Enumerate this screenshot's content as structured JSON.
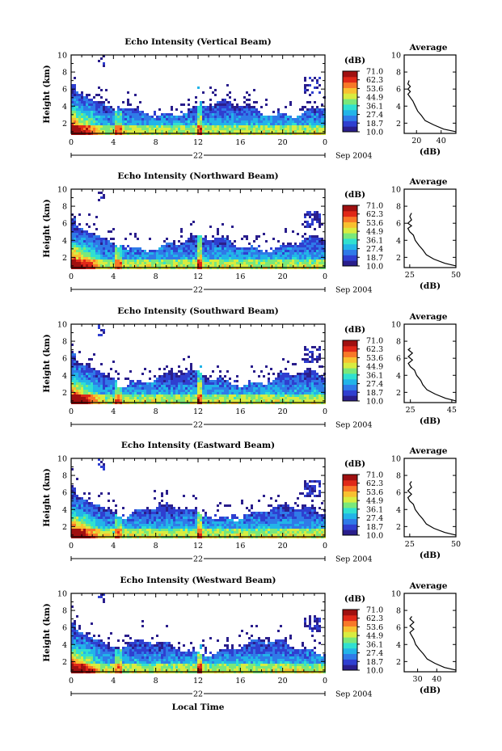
{
  "colorscale": {
    "unit_label": "(dB)",
    "ticks": [
      "71.0",
      "62.3",
      "53.6",
      "44.9",
      "36.1",
      "27.4",
      "18.7",
      "10.0"
    ],
    "colors": [
      "#2a1e8c",
      "#2f3fd0",
      "#2f7ae8",
      "#22b4e8",
      "#30e0d0",
      "#7ae87a",
      "#d8ec40",
      "#f8c030",
      "#f87828",
      "#e02818",
      "#a01010"
    ]
  },
  "shared": {
    "ylabel": "Height (km)",
    "yticks": [
      2,
      4,
      6,
      8,
      10
    ],
    "ylim": [
      0.8,
      10.0
    ],
    "xticks": [
      "0",
      "4",
      "8",
      "12",
      "16",
      "20",
      "0"
    ],
    "xlim": [
      0,
      24
    ],
    "date_day": "22",
    "date_month_year": "Sep 2004",
    "avg_title": "Average",
    "avg_xlabel": "(dB)",
    "bottom_xlabel": "Local Time"
  },
  "chart_data": [
    {
      "type": "heatmap",
      "title": "Echo Intensity (Vertical Beam)",
      "ylabel": "Height (km)",
      "x_axis": "Local Time",
      "zlim": [
        10.0,
        71.0
      ],
      "profile": {
        "type": "line",
        "title": "Average",
        "xlabel": "(dB)",
        "xticks": [
          "20",
          "40"
        ],
        "xlim": [
          10,
          52
        ],
        "points": [
          [
            52,
            1.0
          ],
          [
            42,
            1.3
          ],
          [
            34,
            1.8
          ],
          [
            27,
            2.3
          ],
          [
            24,
            2.9
          ],
          [
            21,
            3.4
          ],
          [
            19,
            4.0
          ],
          [
            17,
            4.6
          ],
          [
            15,
            5.0
          ],
          [
            13,
            5.4
          ],
          [
            15,
            5.7
          ],
          [
            13,
            6.0
          ],
          [
            15,
            6.3
          ],
          [
            13,
            6.6
          ],
          [
            14,
            7.0
          ]
        ]
      }
    },
    {
      "type": "heatmap",
      "title": "Echo Intensity (Northward Beam)",
      "ylabel": "Height (km)",
      "x_axis": "Local Time",
      "zlim": [
        10.0,
        71.0
      ],
      "profile": {
        "type": "line",
        "title": "Average",
        "xlabel": "(dB)",
        "xticks": [
          "25",
          "50"
        ],
        "xlim": [
          22,
          50
        ],
        "points": [
          [
            50,
            1.0
          ],
          [
            44,
            1.3
          ],
          [
            38,
            1.8
          ],
          [
            34,
            2.3
          ],
          [
            32,
            2.9
          ],
          [
            30,
            3.4
          ],
          [
            28,
            4.0
          ],
          [
            27,
            4.6
          ],
          [
            25,
            5.0
          ],
          [
            24,
            5.4
          ],
          [
            26,
            5.7
          ],
          [
            24,
            6.0
          ],
          [
            26,
            6.4
          ],
          [
            25,
            6.8
          ],
          [
            26,
            7.2
          ]
        ]
      }
    },
    {
      "type": "heatmap",
      "title": "Echo Intensity (Southward Beam)",
      "ylabel": "Height (km)",
      "x_axis": "Local Time",
      "zlim": [
        10.0,
        71.0
      ],
      "profile": {
        "type": "line",
        "title": "Average",
        "xlabel": "(dB)",
        "xticks": [
          "25",
          "45"
        ],
        "xlim": [
          22,
          47
        ],
        "points": [
          [
            47,
            1.0
          ],
          [
            42,
            1.3
          ],
          [
            37,
            1.8
          ],
          [
            33,
            2.3
          ],
          [
            31,
            2.9
          ],
          [
            30,
            3.4
          ],
          [
            28,
            4.0
          ],
          [
            27,
            4.6
          ],
          [
            25,
            5.0
          ],
          [
            24,
            5.4
          ],
          [
            26,
            5.8
          ],
          [
            24,
            6.2
          ],
          [
            26,
            6.6
          ],
          [
            24,
            7.0
          ],
          [
            25,
            7.2
          ]
        ]
      }
    },
    {
      "type": "heatmap",
      "title": "Echo Intensity (Eastward Beam)",
      "ylabel": "Height (km)",
      "x_axis": "Local Time",
      "zlim": [
        10.0,
        71.0
      ],
      "profile": {
        "type": "line",
        "title": "Average",
        "xlabel": "(dB)",
        "xticks": [
          "25",
          "50"
        ],
        "xlim": [
          22,
          50
        ],
        "points": [
          [
            50,
            1.0
          ],
          [
            44,
            1.3
          ],
          [
            38,
            1.8
          ],
          [
            34,
            2.3
          ],
          [
            32,
            2.9
          ],
          [
            30,
            3.4
          ],
          [
            28,
            4.0
          ],
          [
            27,
            4.6
          ],
          [
            25,
            5.0
          ],
          [
            24,
            5.4
          ],
          [
            26,
            5.8
          ],
          [
            24,
            6.2
          ],
          [
            26,
            6.6
          ],
          [
            25,
            7.0
          ],
          [
            26,
            7.3
          ]
        ]
      }
    },
    {
      "type": "heatmap",
      "title": "Echo Intensity (Westward Beam)",
      "ylabel": "Height (km)",
      "x_axis": "Local Time",
      "zlim": [
        10.0,
        71.0
      ],
      "profile": {
        "type": "line",
        "title": "Average",
        "xlabel": "(dB)",
        "xticks": [
          "30",
          "40"
        ],
        "xlim": [
          23,
          50
        ],
        "points": [
          [
            50,
            1.0
          ],
          [
            44,
            1.3
          ],
          [
            39,
            1.8
          ],
          [
            35,
            2.3
          ],
          [
            33,
            2.9
          ],
          [
            31,
            3.4
          ],
          [
            29,
            4.0
          ],
          [
            28,
            4.6
          ],
          [
            27,
            5.0
          ],
          [
            26,
            5.4
          ],
          [
            28,
            5.8
          ],
          [
            26,
            6.2
          ],
          [
            28,
            6.6
          ],
          [
            26,
            7.0
          ],
          [
            27,
            7.3
          ]
        ]
      }
    }
  ]
}
